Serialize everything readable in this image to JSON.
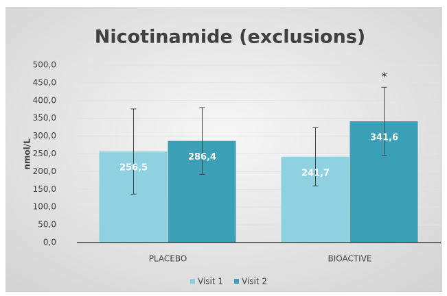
{
  "chart_data": {
    "type": "bar",
    "title": "Nicotinamide (exclusions)",
    "y_label": "nmol/L",
    "categories": [
      "PLACEBO",
      "BIOACTIVE"
    ],
    "series": [
      {
        "name": "Visit 1",
        "color": "#8fd0e1",
        "values": [
          256.5,
          241.7
        ],
        "value_labels": [
          "256,5",
          "241,7"
        ],
        "errors": [
          120,
          82
        ]
      },
      {
        "name": "Visit 2",
        "color": "#3b9fb6",
        "values": [
          286.4,
          341.6
        ],
        "value_labels": [
          "286,4",
          "341,6"
        ],
        "errors": [
          94,
          96
        ]
      }
    ],
    "annotation": "*",
    "ylim": [
      0,
      500
    ],
    "yticks": [
      {
        "value": 0,
        "label": "0,0"
      },
      {
        "value": 50,
        "label": "50,0"
      },
      {
        "value": 100,
        "label": "100,0"
      },
      {
        "value": 150,
        "label": "150,0"
      },
      {
        "value": 200,
        "label": "200,0"
      },
      {
        "value": 250,
        "label": "250,0"
      },
      {
        "value": 300,
        "label": "300,0"
      },
      {
        "value": 350,
        "label": "350,0"
      },
      {
        "value": 400,
        "label": "400,0"
      },
      {
        "value": 450,
        "label": "450,0"
      },
      {
        "value": 500,
        "label": "500,0"
      }
    ],
    "grid": true,
    "legend": "bottom"
  }
}
